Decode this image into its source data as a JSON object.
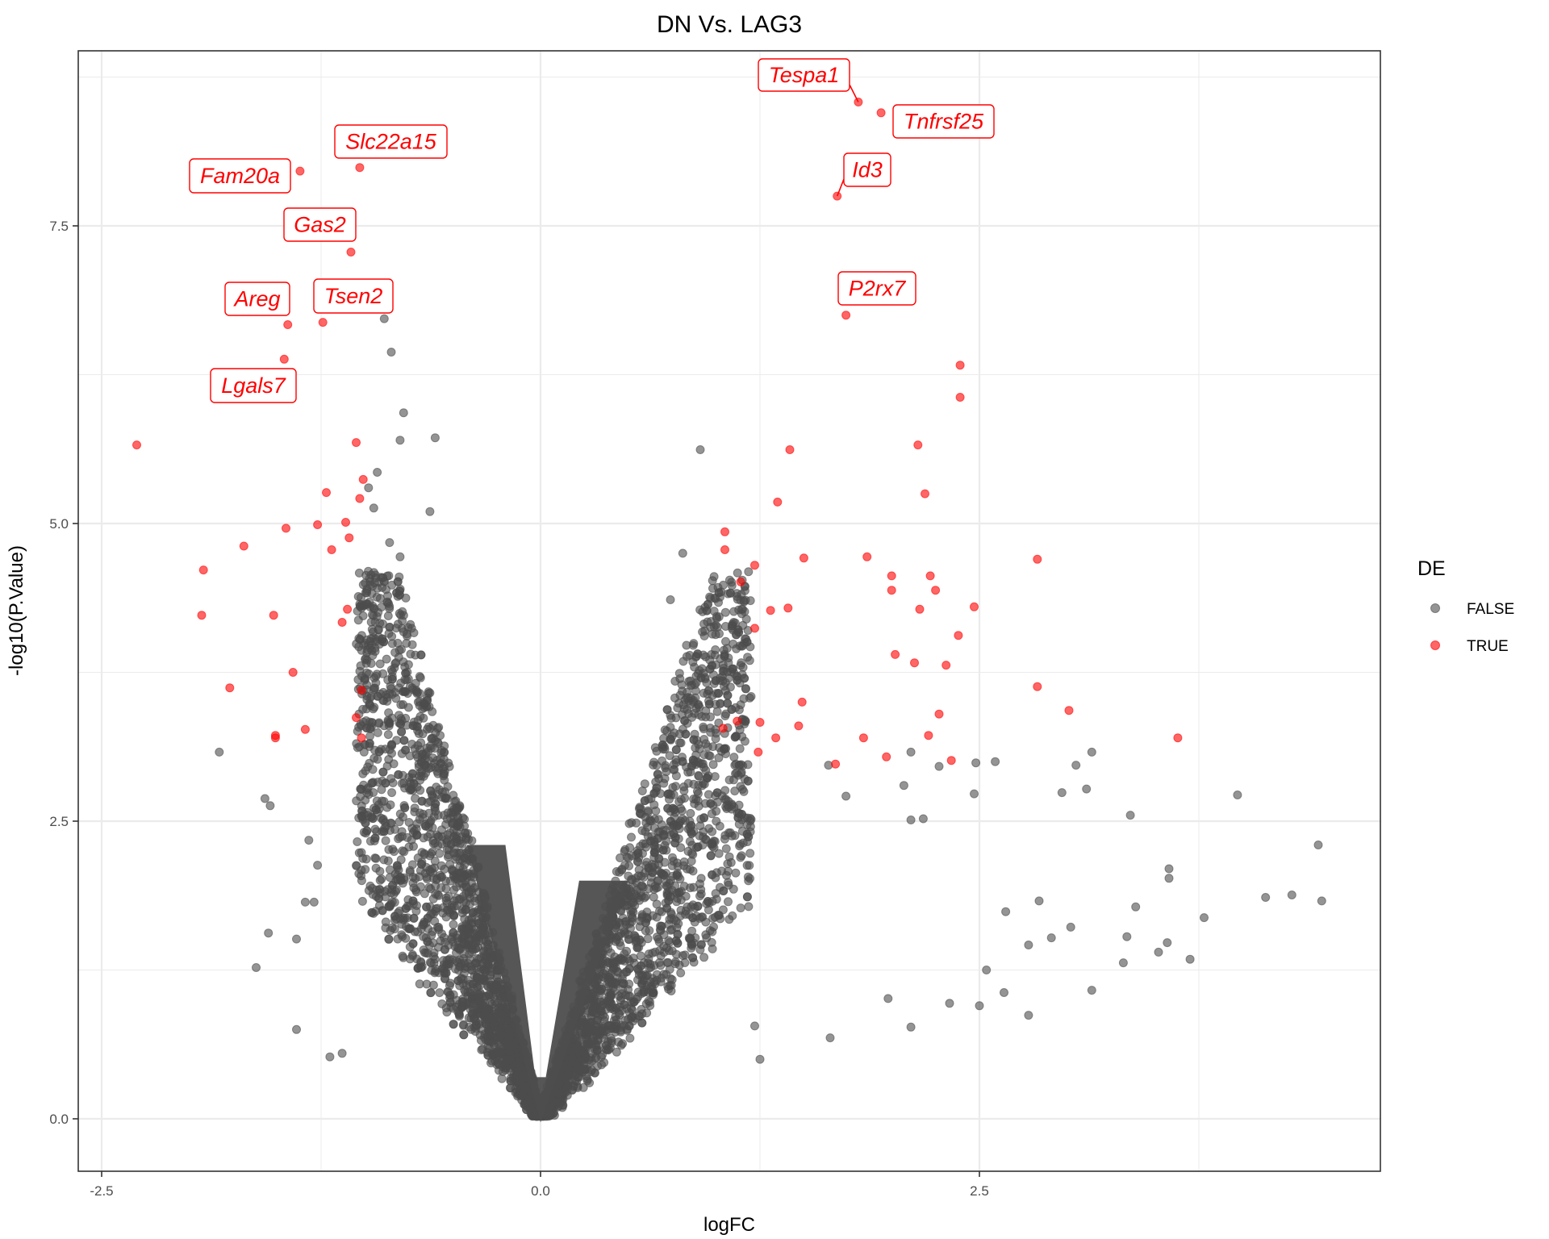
{
  "chart_data": {
    "type": "scatter",
    "subtype": "volcano",
    "title": "DN Vs. LAG3",
    "xlabel": "logFC",
    "ylabel": "-log10(P.Value)",
    "xlim": [
      -2.6,
      4.7
    ],
    "ylim": [
      -0.42,
      8.8
    ],
    "x_ticks": [
      -2.5,
      0.0,
      2.5
    ],
    "x_tick_labels": [
      "-2.5",
      "0.0",
      "2.5"
    ],
    "y_ticks": [
      0.0,
      2.5,
      5.0,
      7.5
    ],
    "y_tick_labels": [
      "0.0",
      "2.5",
      "5.0",
      "7.5"
    ],
    "grid": true,
    "legend": {
      "title": "DE",
      "position": "right",
      "entries": [
        {
          "label": "FALSE",
          "color": "#4d4d4d"
        },
        {
          "label": "TRUE",
          "color": "#ff0000"
        }
      ]
    },
    "colors": {
      "FALSE": "#4d4d4d",
      "TRUE": "#ff0000",
      "point_alpha": 0.6
    },
    "labeled_genes": [
      {
        "gene": "Tespa1",
        "x": 1.81,
        "y": 8.54,
        "DE": true
      },
      {
        "gene": "Tnfrsf25",
        "x": 1.94,
        "y": 8.45,
        "DE": true
      },
      {
        "gene": "Slc22a15",
        "x": -1.03,
        "y": 7.99,
        "DE": true
      },
      {
        "gene": "Fam20a",
        "x": -1.37,
        "y": 7.96,
        "DE": true
      },
      {
        "gene": "Id3",
        "x": 1.69,
        "y": 7.75,
        "DE": true
      },
      {
        "gene": "Gas2",
        "x": -1.08,
        "y": 7.28,
        "DE": true
      },
      {
        "gene": "P2rx7",
        "x": 1.74,
        "y": 6.75,
        "DE": true
      },
      {
        "gene": "Tsen2",
        "x": -1.24,
        "y": 6.69,
        "DE": true
      },
      {
        "gene": "Areg",
        "x": -1.44,
        "y": 6.67,
        "DE": true
      },
      {
        "gene": "Lgals7",
        "x": -1.46,
        "y": 6.38,
        "DE": true
      }
    ],
    "series": [
      {
        "name": "TRUE",
        "points": [
          [
            -2.3,
            5.66
          ],
          [
            -1.05,
            5.68
          ],
          [
            -1.01,
            5.37
          ],
          [
            -1.22,
            5.26
          ],
          [
            -1.03,
            5.21
          ],
          [
            -1.45,
            4.96
          ],
          [
            -1.27,
            4.99
          ],
          [
            -1.11,
            5.01
          ],
          [
            -1.09,
            4.88
          ],
          [
            -1.69,
            4.81
          ],
          [
            -1.19,
            4.78
          ],
          [
            -1.92,
            4.61
          ],
          [
            -1.93,
            4.23
          ],
          [
            -1.52,
            4.23
          ],
          [
            -1.1,
            4.28
          ],
          [
            -1.13,
            4.17
          ],
          [
            -1.41,
            3.75
          ],
          [
            -1.77,
            3.62
          ],
          [
            -1.02,
            3.6
          ],
          [
            -1.05,
            3.37
          ],
          [
            -1.34,
            3.27
          ],
          [
            -1.51,
            3.22
          ],
          [
            -1.51,
            3.2
          ],
          [
            -1.02,
            3.2
          ],
          [
            2.39,
            6.33
          ],
          [
            2.39,
            6.06
          ],
          [
            1.42,
            5.62
          ],
          [
            1.35,
            5.18
          ],
          [
            2.15,
            5.66
          ],
          [
            2.19,
            5.25
          ],
          [
            1.05,
            4.93
          ],
          [
            1.05,
            4.78
          ],
          [
            1.22,
            4.65
          ],
          [
            1.5,
            4.71
          ],
          [
            1.86,
            4.72
          ],
          [
            1.14,
            4.51
          ],
          [
            2.0,
            4.56
          ],
          [
            2.22,
            4.56
          ],
          [
            2.0,
            4.44
          ],
          [
            2.25,
            4.44
          ],
          [
            1.31,
            4.27
          ],
          [
            1.41,
            4.29
          ],
          [
            2.16,
            4.28
          ],
          [
            2.47,
            4.3
          ],
          [
            1.22,
            4.12
          ],
          [
            2.38,
            4.06
          ],
          [
            2.02,
            3.9
          ],
          [
            2.13,
            3.83
          ],
          [
            2.31,
            3.81
          ],
          [
            2.83,
            4.7
          ],
          [
            2.83,
            3.63
          ],
          [
            3.01,
            3.43
          ],
          [
            3.63,
            3.2
          ],
          [
            1.04,
            3.28
          ],
          [
            1.12,
            3.34
          ],
          [
            1.25,
            3.33
          ],
          [
            1.24,
            3.08
          ],
          [
            1.34,
            3.2
          ],
          [
            1.47,
            3.3
          ],
          [
            1.49,
            3.5
          ],
          [
            1.84,
            3.2
          ],
          [
            1.68,
            2.98
          ],
          [
            1.97,
            3.04
          ],
          [
            2.21,
            3.22
          ],
          [
            2.27,
            3.4
          ],
          [
            2.34,
            3.01
          ]
        ]
      },
      {
        "name": "FALSE",
        "points": [
          [
            -0.89,
            6.72
          ],
          [
            -0.85,
            6.44
          ],
          [
            -0.78,
            5.93
          ],
          [
            -0.8,
            5.7
          ],
          [
            -0.6,
            5.72
          ],
          [
            -0.93,
            5.43
          ],
          [
            -0.98,
            5.3
          ],
          [
            -0.95,
            5.13
          ],
          [
            -0.63,
            5.1
          ],
          [
            -0.86,
            4.84
          ],
          [
            -0.8,
            4.72
          ],
          [
            0.91,
            5.62
          ],
          [
            0.81,
            4.75
          ],
          [
            0.74,
            4.36
          ],
          [
            0.98,
            4.52
          ],
          [
            -1.83,
            3.08
          ],
          [
            -1.57,
            2.69
          ],
          [
            -1.54,
            2.63
          ],
          [
            -1.32,
            2.34
          ],
          [
            -1.27,
            2.13
          ],
          [
            -1.29,
            1.82
          ],
          [
            -1.34,
            1.82
          ],
          [
            -1.55,
            1.56
          ],
          [
            -1.39,
            1.51
          ],
          [
            -1.62,
            1.27
          ],
          [
            -1.39,
            0.75
          ],
          [
            -1.2,
            0.52
          ],
          [
            -1.13,
            0.55
          ],
          [
            3.97,
            2.72
          ],
          [
            3.36,
            2.55
          ],
          [
            4.43,
            2.3
          ],
          [
            3.58,
            2.1
          ],
          [
            3.58,
            2.02
          ],
          [
            4.13,
            1.86
          ],
          [
            4.28,
            1.88
          ],
          [
            4.45,
            1.83
          ],
          [
            3.39,
            1.78
          ],
          [
            3.78,
            1.69
          ],
          [
            3.05,
            2.97
          ],
          [
            3.14,
            3.08
          ],
          [
            2.97,
            2.74
          ],
          [
            3.11,
            2.77
          ],
          [
            2.59,
            3.0
          ],
          [
            2.47,
            2.73
          ],
          [
            2.48,
            2.99
          ],
          [
            2.27,
            2.96
          ],
          [
            2.18,
            2.52
          ],
          [
            2.11,
            2.51
          ],
          [
            2.07,
            2.8
          ],
          [
            2.11,
            3.08
          ],
          [
            1.64,
            2.97
          ],
          [
            1.74,
            2.71
          ],
          [
            2.84,
            1.83
          ],
          [
            3.02,
            1.61
          ],
          [
            2.91,
            1.52
          ],
          [
            2.78,
            1.46
          ],
          [
            3.14,
            1.08
          ],
          [
            3.32,
            1.31
          ],
          [
            3.34,
            1.53
          ],
          [
            3.52,
            1.4
          ],
          [
            3.57,
            1.48
          ],
          [
            3.7,
            1.34
          ],
          [
            2.65,
            1.74
          ],
          [
            2.54,
            1.25
          ],
          [
            2.64,
            1.06
          ],
          [
            2.78,
            0.87
          ],
          [
            2.5,
            0.95
          ],
          [
            2.33,
            0.97
          ],
          [
            2.11,
            0.77
          ],
          [
            1.98,
            1.01
          ],
          [
            1.65,
            0.68
          ],
          [
            1.25,
            0.5
          ],
          [
            1.22,
            0.78
          ]
        ]
      }
    ],
    "dense_cloud": {
      "description": "Non-significant genes forming the volcano V-shape around logFC 0",
      "approx_count": 4500,
      "left_arm_logFC_range": [
        -1.2,
        0
      ],
      "right_arm_logFC_range": [
        0,
        1.3
      ]
    }
  }
}
